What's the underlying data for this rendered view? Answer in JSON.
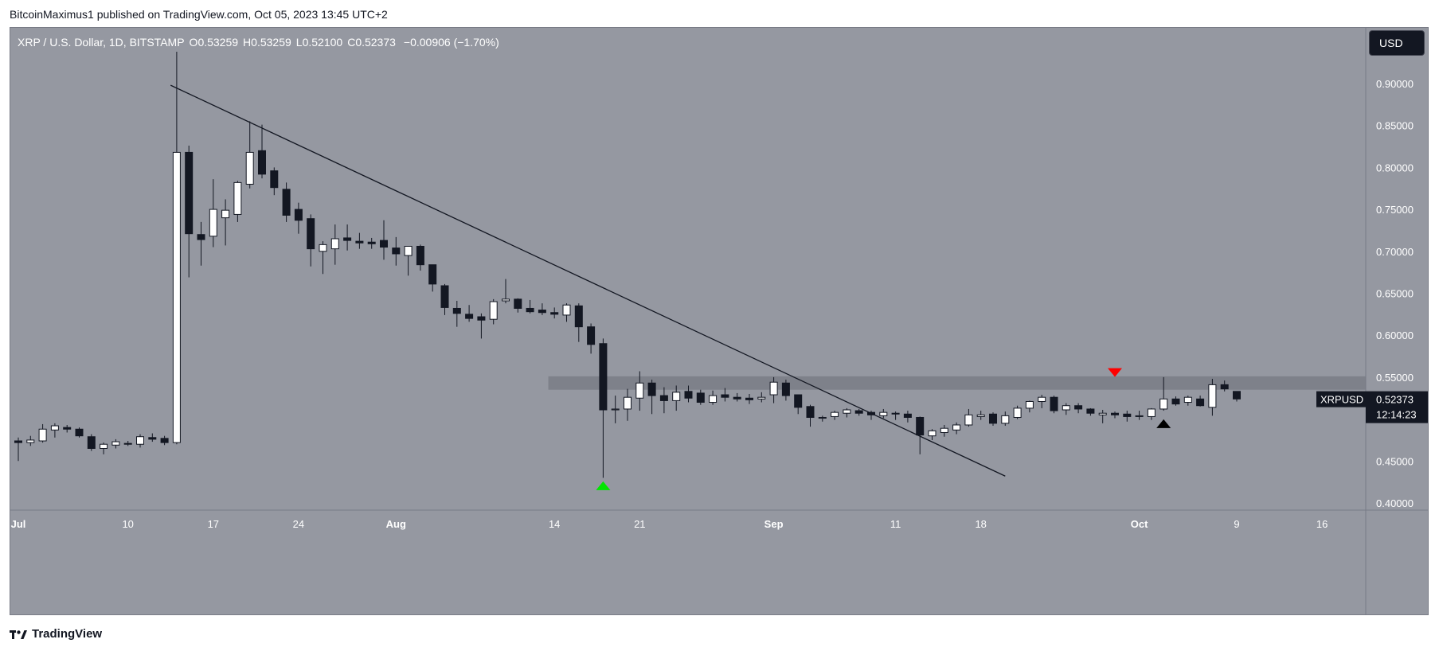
{
  "header": {
    "publisher_line": "BitcoinMaximus1 published on TradingView.com, Oct 05, 2023 13:45 UTC+2"
  },
  "legend": {
    "symbol": "XRP / U.S. Dollar, 1D, BITSTAMP",
    "open_label": "O",
    "open": "0.53259",
    "high_label": "H",
    "high": "0.53259",
    "low_label": "L",
    "low": "0.52100",
    "close_label": "C",
    "close": "0.52373",
    "change": "−0.00906 (−1.70%)"
  },
  "currency_button": "USD",
  "footer": {
    "brand": "TradingView"
  },
  "colors": {
    "background": "#9598a1",
    "up_body": "#ffffff",
    "down_body": "#131722",
    "wick": "#131722",
    "resistance_zone": "#7b7e87",
    "arrow_red": "#ff0000",
    "arrow_green": "#00e600",
    "arrow_black": "#000000"
  },
  "chart_data": {
    "type": "candlestick",
    "symbol": "XRPUSD",
    "interval": "1D",
    "ylim": [
      0.4,
      0.9
    ],
    "y_ticks": [
      "0.90000",
      "0.85000",
      "0.80000",
      "0.75000",
      "0.70000",
      "0.65000",
      "0.60000",
      "0.55000",
      "0.50000",
      "0.45000",
      "0.40000"
    ],
    "x_ticks": [
      {
        "label": "Jul",
        "day": 0
      },
      {
        "label": "10",
        "day": 9
      },
      {
        "label": "17",
        "day": 16
      },
      {
        "label": "24",
        "day": 23
      },
      {
        "label": "Aug",
        "day": 31
      },
      {
        "label": "14",
        "day": 44
      },
      {
        "label": "21",
        "day": 51
      },
      {
        "label": "Sep",
        "day": 62
      },
      {
        "label": "11",
        "day": 72
      },
      {
        "label": "18",
        "day": 79
      },
      {
        "label": "Oct",
        "day": 92
      },
      {
        "label": "9",
        "day": 100
      },
      {
        "label": "16",
        "day": 107
      }
    ],
    "candles": [
      {
        "o": 0.474,
        "h": 0.478,
        "l": 0.45,
        "c": 0.472
      },
      {
        "o": 0.472,
        "h": 0.48,
        "l": 0.468,
        "c": 0.475
      },
      {
        "o": 0.474,
        "h": 0.494,
        "l": 0.472,
        "c": 0.488
      },
      {
        "o": 0.487,
        "h": 0.495,
        "l": 0.478,
        "c": 0.492
      },
      {
        "o": 0.49,
        "h": 0.493,
        "l": 0.484,
        "c": 0.488
      },
      {
        "o": 0.488,
        "h": 0.49,
        "l": 0.478,
        "c": 0.48
      },
      {
        "o": 0.479,
        "h": 0.482,
        "l": 0.462,
        "c": 0.465
      },
      {
        "o": 0.465,
        "h": 0.472,
        "l": 0.458,
        "c": 0.47
      },
      {
        "o": 0.469,
        "h": 0.476,
        "l": 0.465,
        "c": 0.473
      },
      {
        "o": 0.471,
        "h": 0.474,
        "l": 0.468,
        "c": 0.47
      },
      {
        "o": 0.47,
        "h": 0.482,
        "l": 0.466,
        "c": 0.479
      },
      {
        "o": 0.478,
        "h": 0.483,
        "l": 0.473,
        "c": 0.476
      },
      {
        "o": 0.477,
        "h": 0.48,
        "l": 0.469,
        "c": 0.472
      },
      {
        "o": 0.472,
        "h": 0.938,
        "l": 0.47,
        "c": 0.818
      },
      {
        "o": 0.818,
        "h": 0.826,
        "l": 0.669,
        "c": 0.721
      },
      {
        "o": 0.72,
        "h": 0.735,
        "l": 0.683,
        "c": 0.714
      },
      {
        "o": 0.718,
        "h": 0.786,
        "l": 0.705,
        "c": 0.75
      },
      {
        "o": 0.74,
        "h": 0.762,
        "l": 0.707,
        "c": 0.749
      },
      {
        "o": 0.744,
        "h": 0.784,
        "l": 0.735,
        "c": 0.782
      },
      {
        "o": 0.78,
        "h": 0.855,
        "l": 0.775,
        "c": 0.818
      },
      {
        "o": 0.82,
        "h": 0.851,
        "l": 0.787,
        "c": 0.792
      },
      {
        "o": 0.796,
        "h": 0.8,
        "l": 0.767,
        "c": 0.776
      },
      {
        "o": 0.774,
        "h": 0.782,
        "l": 0.735,
        "c": 0.743
      },
      {
        "o": 0.75,
        "h": 0.758,
        "l": 0.721,
        "c": 0.737
      },
      {
        "o": 0.739,
        "h": 0.744,
        "l": 0.682,
        "c": 0.703
      },
      {
        "o": 0.7,
        "h": 0.712,
        "l": 0.673,
        "c": 0.708
      },
      {
        "o": 0.703,
        "h": 0.732,
        "l": 0.684,
        "c": 0.715
      },
      {
        "o": 0.716,
        "h": 0.732,
        "l": 0.701,
        "c": 0.713
      },
      {
        "o": 0.712,
        "h": 0.722,
        "l": 0.703,
        "c": 0.71
      },
      {
        "o": 0.711,
        "h": 0.716,
        "l": 0.703,
        "c": 0.709
      },
      {
        "o": 0.713,
        "h": 0.737,
        "l": 0.69,
        "c": 0.705
      },
      {
        "o": 0.704,
        "h": 0.717,
        "l": 0.683,
        "c": 0.697
      },
      {
        "o": 0.695,
        "h": 0.706,
        "l": 0.671,
        "c": 0.706
      },
      {
        "o": 0.706,
        "h": 0.708,
        "l": 0.677,
        "c": 0.684
      },
      {
        "o": 0.684,
        "h": 0.684,
        "l": 0.652,
        "c": 0.661
      },
      {
        "o": 0.659,
        "h": 0.661,
        "l": 0.624,
        "c": 0.633
      },
      {
        "o": 0.632,
        "h": 0.641,
        "l": 0.61,
        "c": 0.626
      },
      {
        "o": 0.625,
        "h": 0.636,
        "l": 0.616,
        "c": 0.62
      },
      {
        "o": 0.622,
        "h": 0.626,
        "l": 0.596,
        "c": 0.618
      },
      {
        "o": 0.619,
        "h": 0.643,
        "l": 0.613,
        "c": 0.64
      },
      {
        "o": 0.641,
        "h": 0.667,
        "l": 0.638,
        "c": 0.643
      },
      {
        "o": 0.643,
        "h": 0.644,
        "l": 0.627,
        "c": 0.632
      },
      {
        "o": 0.632,
        "h": 0.642,
        "l": 0.626,
        "c": 0.628
      },
      {
        "o": 0.63,
        "h": 0.638,
        "l": 0.624,
        "c": 0.627
      },
      {
        "o": 0.627,
        "h": 0.633,
        "l": 0.62,
        "c": 0.625
      },
      {
        "o": 0.624,
        "h": 0.638,
        "l": 0.616,
        "c": 0.636
      },
      {
        "o": 0.635,
        "h": 0.638,
        "l": 0.592,
        "c": 0.61
      },
      {
        "o": 0.61,
        "h": 0.614,
        "l": 0.578,
        "c": 0.589
      },
      {
        "o": 0.59,
        "h": 0.596,
        "l": 0.43,
        "c": 0.511
      },
      {
        "o": 0.511,
        "h": 0.528,
        "l": 0.495,
        "c": 0.512
      },
      {
        "o": 0.512,
        "h": 0.536,
        "l": 0.498,
        "c": 0.526
      },
      {
        "o": 0.525,
        "h": 0.557,
        "l": 0.51,
        "c": 0.543
      },
      {
        "o": 0.543,
        "h": 0.547,
        "l": 0.506,
        "c": 0.528
      },
      {
        "o": 0.528,
        "h": 0.538,
        "l": 0.507,
        "c": 0.522
      },
      {
        "o": 0.522,
        "h": 0.54,
        "l": 0.51,
        "c": 0.532
      },
      {
        "o": 0.533,
        "h": 0.54,
        "l": 0.52,
        "c": 0.525
      },
      {
        "o": 0.531,
        "h": 0.535,
        "l": 0.517,
        "c": 0.52
      },
      {
        "o": 0.52,
        "h": 0.534,
        "l": 0.517,
        "c": 0.528
      },
      {
        "o": 0.529,
        "h": 0.537,
        "l": 0.521,
        "c": 0.526
      },
      {
        "o": 0.526,
        "h": 0.531,
        "l": 0.521,
        "c": 0.524
      },
      {
        "o": 0.525,
        "h": 0.53,
        "l": 0.518,
        "c": 0.523
      },
      {
        "o": 0.524,
        "h": 0.532,
        "l": 0.52,
        "c": 0.526
      },
      {
        "o": 0.529,
        "h": 0.55,
        "l": 0.519,
        "c": 0.544
      },
      {
        "o": 0.543,
        "h": 0.547,
        "l": 0.522,
        "c": 0.528
      },
      {
        "o": 0.529,
        "h": 0.529,
        "l": 0.506,
        "c": 0.514
      },
      {
        "o": 0.515,
        "h": 0.517,
        "l": 0.491,
        "c": 0.502
      },
      {
        "o": 0.501,
        "h": 0.504,
        "l": 0.497,
        "c": 0.502
      },
      {
        "o": 0.503,
        "h": 0.51,
        "l": 0.499,
        "c": 0.508
      },
      {
        "o": 0.507,
        "h": 0.513,
        "l": 0.502,
        "c": 0.511
      },
      {
        "o": 0.51,
        "h": 0.512,
        "l": 0.504,
        "c": 0.507
      },
      {
        "o": 0.508,
        "h": 0.51,
        "l": 0.499,
        "c": 0.505
      },
      {
        "o": 0.504,
        "h": 0.512,
        "l": 0.501,
        "c": 0.508
      },
      {
        "o": 0.507,
        "h": 0.509,
        "l": 0.499,
        "c": 0.506
      },
      {
        "o": 0.506,
        "h": 0.51,
        "l": 0.496,
        "c": 0.502
      },
      {
        "o": 0.502,
        "h": 0.503,
        "l": 0.458,
        "c": 0.481
      },
      {
        "o": 0.48,
        "h": 0.488,
        "l": 0.475,
        "c": 0.486
      },
      {
        "o": 0.484,
        "h": 0.493,
        "l": 0.479,
        "c": 0.489
      },
      {
        "o": 0.487,
        "h": 0.496,
        "l": 0.482,
        "c": 0.493
      },
      {
        "o": 0.493,
        "h": 0.512,
        "l": 0.491,
        "c": 0.505
      },
      {
        "o": 0.503,
        "h": 0.51,
        "l": 0.499,
        "c": 0.505
      },
      {
        "o": 0.506,
        "h": 0.508,
        "l": 0.492,
        "c": 0.495
      },
      {
        "o": 0.495,
        "h": 0.509,
        "l": 0.492,
        "c": 0.504
      },
      {
        "o": 0.502,
        "h": 0.516,
        "l": 0.5,
        "c": 0.513
      },
      {
        "o": 0.513,
        "h": 0.522,
        "l": 0.508,
        "c": 0.521
      },
      {
        "o": 0.521,
        "h": 0.529,
        "l": 0.513,
        "c": 0.526
      },
      {
        "o": 0.526,
        "h": 0.528,
        "l": 0.507,
        "c": 0.51
      },
      {
        "o": 0.511,
        "h": 0.519,
        "l": 0.505,
        "c": 0.516
      },
      {
        "o": 0.516,
        "h": 0.519,
        "l": 0.507,
        "c": 0.512
      },
      {
        "o": 0.512,
        "h": 0.513,
        "l": 0.504,
        "c": 0.507
      },
      {
        "o": 0.505,
        "h": 0.511,
        "l": 0.495,
        "c": 0.507
      },
      {
        "o": 0.507,
        "h": 0.509,
        "l": 0.501,
        "c": 0.505
      },
      {
        "o": 0.506,
        "h": 0.51,
        "l": 0.497,
        "c": 0.503
      },
      {
        "o": 0.503,
        "h": 0.51,
        "l": 0.499,
        "c": 0.504
      },
      {
        "o": 0.503,
        "h": 0.513,
        "l": 0.499,
        "c": 0.512
      },
      {
        "o": 0.512,
        "h": 0.55,
        "l": 0.51,
        "c": 0.524
      },
      {
        "o": 0.524,
        "h": 0.527,
        "l": 0.516,
        "c": 0.518
      },
      {
        "o": 0.52,
        "h": 0.528,
        "l": 0.516,
        "c": 0.526
      },
      {
        "o": 0.524,
        "h": 0.528,
        "l": 0.515,
        "c": 0.516
      },
      {
        "o": 0.514,
        "h": 0.548,
        "l": 0.504,
        "c": 0.541
      },
      {
        "o": 0.541,
        "h": 0.546,
        "l": 0.533,
        "c": 0.536
      },
      {
        "o": 0.533,
        "h": 0.533,
        "l": 0.521,
        "c": 0.524
      }
    ],
    "trendline": {
      "start": {
        "day": 12.5,
        "price": 0.898
      },
      "end": {
        "day": 81,
        "price": 0.432
      }
    },
    "resistance_zone": {
      "from_day": 43.5,
      "price_low": 0.535,
      "price_high": 0.551
    },
    "markers": [
      {
        "day": 48,
        "price": 0.42,
        "direction": "up",
        "color": "#00e600",
        "name": "green-arrow"
      },
      {
        "day": 90,
        "price": 0.556,
        "direction": "down",
        "color": "#ff0000",
        "name": "red-arrow"
      },
      {
        "day": 94,
        "price": 0.494,
        "direction": "up",
        "color": "#000000",
        "name": "black-arrow"
      }
    ],
    "price_label": {
      "symbol": "XRPUSD",
      "price": "0.52373",
      "countdown": "12:14:23",
      "value": 0.5237
    }
  }
}
